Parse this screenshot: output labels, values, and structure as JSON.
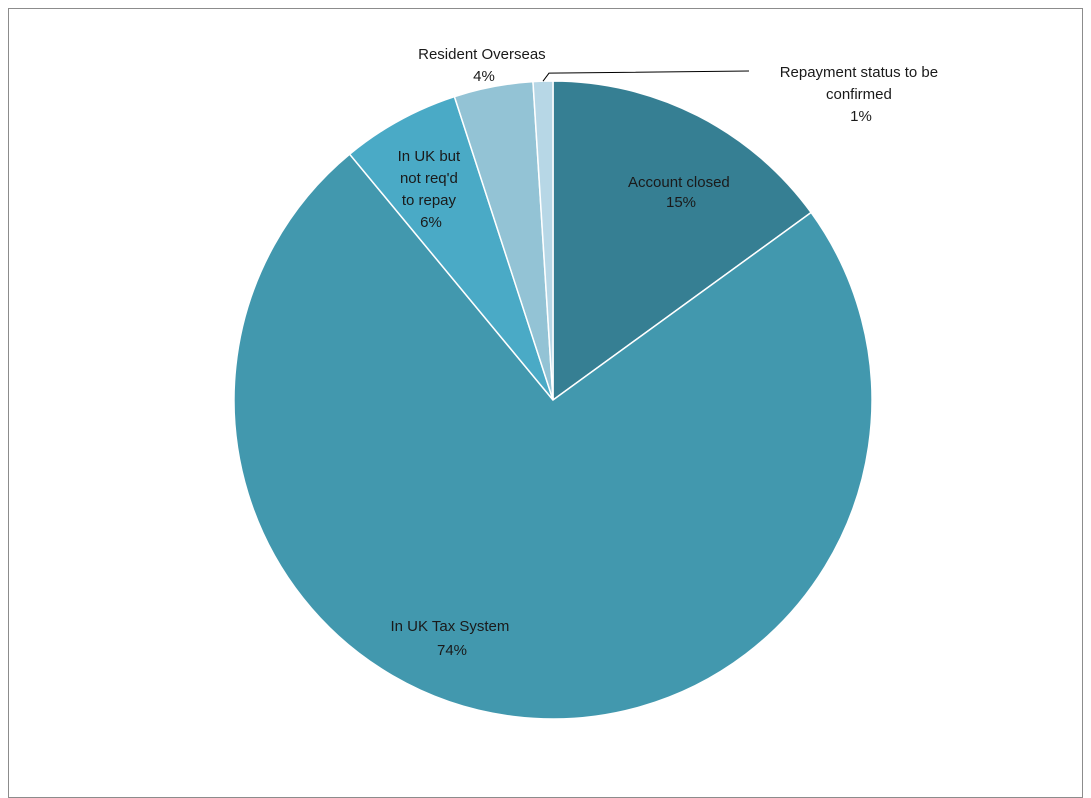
{
  "chart_data": {
    "type": "pie",
    "title": "",
    "start_angle_deg": 0,
    "direction": "clockwise",
    "slices": [
      {
        "label_lines": [
          "Account closed",
          "15%"
        ],
        "value": 15,
        "color": "#367f93"
      },
      {
        "label_lines": [
          "In UK Tax System",
          "74%"
        ],
        "value": 74,
        "color": "#4298ae"
      },
      {
        "label_lines": [
          "In UK but",
          "not req'd",
          "to repay",
          "6%"
        ],
        "value": 6,
        "color": "#4aaac6"
      },
      {
        "label_lines": [
          "Resident Overseas",
          "4%"
        ],
        "value": 4,
        "color": "#93c3d5"
      },
      {
        "label_lines": [
          "Repayment status  to be",
          "confirmed",
          "1%"
        ],
        "value": 1,
        "color": "#b7d7e6"
      }
    ],
    "slice_border_color": "#ffffff",
    "leader_line_color": "#000000"
  }
}
